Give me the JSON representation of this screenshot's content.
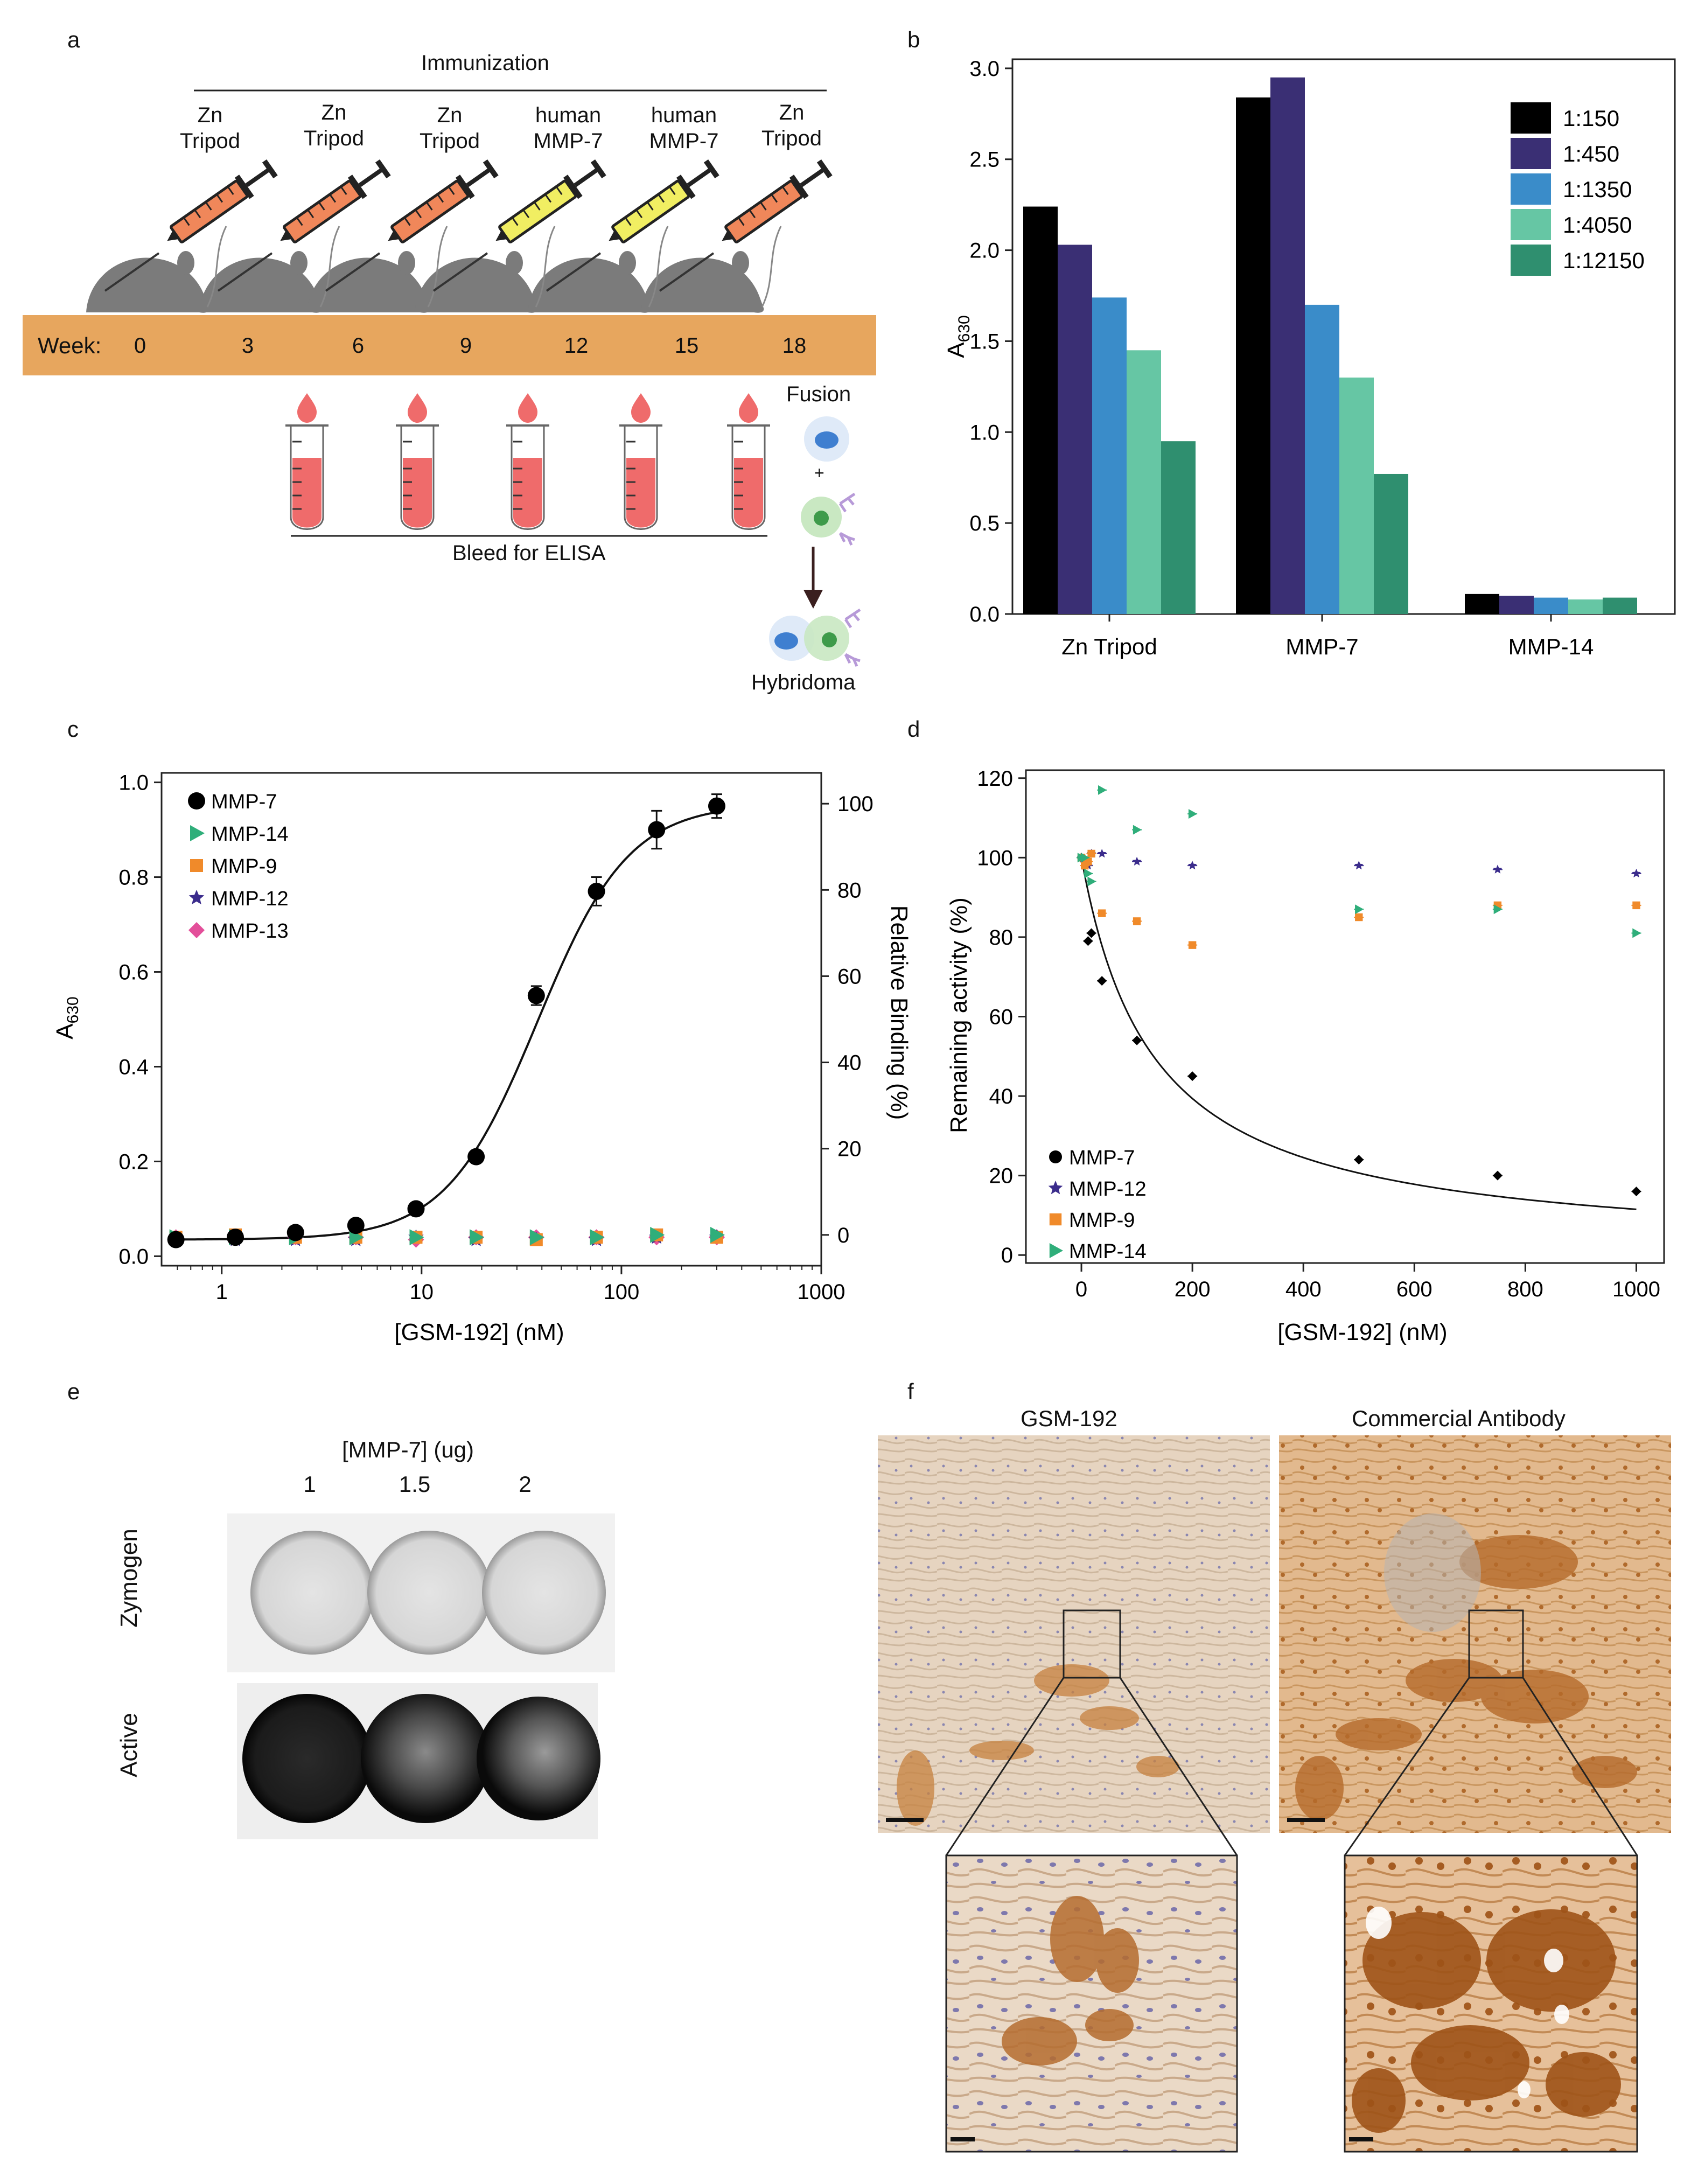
{
  "panel_labels": {
    "a": "a",
    "b": "b",
    "c": "c",
    "d": "d",
    "e": "e",
    "f": "f"
  },
  "colors": {
    "orange_band": "#e7a65e",
    "syringe_orange": "#f0875a",
    "syringe_yellow": "#f1ee62",
    "mouse_gray": "#7b7b7b",
    "blood": "#ef6b6b",
    "myeloma_cell": "#8ab6e8",
    "b_cell": "#a7d8a2",
    "antibody": "#b79ad8"
  },
  "panel_a": {
    "immunization_label": "Immunization",
    "week_label": "Week:",
    "antigens": [
      {
        "line1": "Zn",
        "line2": "Tripod",
        "color": "orange"
      },
      {
        "line1": "Zn",
        "line2": "Tripod",
        "color": "orange"
      },
      {
        "line1": "Zn",
        "line2": "Tripod",
        "color": "orange"
      },
      {
        "line1": "human",
        "line2": "MMP-7",
        "color": "yellow"
      },
      {
        "line1": "human",
        "line2": "MMP-7",
        "color": "yellow"
      },
      {
        "line1": "Zn",
        "line2": "Tripod",
        "color": "orange"
      }
    ],
    "weeks": [
      "0",
      "3",
      "6",
      "9",
      "12",
      "15",
      "18"
    ],
    "bleed_label": "Bleed for ELISA",
    "fusion_label": "Fusion",
    "plus": "+",
    "hybridoma_label": "Hybridoma"
  },
  "chart_data": [
    {
      "id": "b",
      "type": "bar",
      "ylabel_main": "A",
      "ylabel_sub": "630",
      "categories": [
        "Zn Tripod",
        "MMP-7",
        "MMP-14"
      ],
      "ylim": [
        0,
        3.0
      ],
      "yticks": [
        "0.0",
        "0.5",
        "1.0",
        "1.5",
        "2.0",
        "2.5",
        "3.0"
      ],
      "legend_position": "top-right",
      "series": [
        {
          "name": "1:150",
          "color": "#000000",
          "values": [
            2.24,
            2.84,
            0.11
          ]
        },
        {
          "name": "1:450",
          "color": "#3a2f74",
          "values": [
            2.03,
            2.95,
            0.1
          ]
        },
        {
          "name": "1:1350",
          "color": "#3a8cc9",
          "values": [
            1.74,
            1.7,
            0.09
          ]
        },
        {
          "name": "1:4050",
          "color": "#66c6a4",
          "values": [
            1.45,
            1.3,
            0.08
          ]
        },
        {
          "name": "1:12150",
          "color": "#2f8f6f",
          "values": [
            0.95,
            0.77,
            0.09
          ]
        }
      ]
    },
    {
      "id": "c",
      "type": "scatter",
      "x_scale": "log",
      "xlabel": "[GSM-192] (nM)",
      "ylabel_main": "A",
      "ylabel_sub": "630",
      "ylabel_right": "Relative Binding (%)",
      "xlim": [
        0.5,
        1000
      ],
      "ylim": [
        0,
        1.0
      ],
      "xticks": [
        {
          "v": 1,
          "t": "1"
        },
        {
          "v": 10,
          "t": "10"
        },
        {
          "v": 100,
          "t": "100"
        },
        {
          "v": 1000,
          "t": "1000"
        }
      ],
      "yticks": [
        "0.0",
        "0.2",
        "0.4",
        "0.6",
        "0.8",
        "1.0"
      ],
      "right_ticks": [
        "0",
        "20",
        "40",
        "60",
        "80",
        "100"
      ],
      "legend_position": "top-left",
      "x": [
        0.59,
        1.17,
        2.34,
        4.69,
        9.38,
        18.75,
        37.5,
        75,
        150,
        300
      ],
      "series": [
        {
          "name": "MMP-7",
          "color": "#000000",
          "marker": "circle",
          "values": [
            0.035,
            0.04,
            0.05,
            0.065,
            0.1,
            0.21,
            0.55,
            0.77,
            0.9,
            0.95
          ],
          "errors": [
            0,
            0,
            0,
            0,
            0,
            0,
            0.02,
            0.03,
            0.04,
            0.025
          ]
        },
        {
          "name": "MMP-14",
          "color": "#2fae7a",
          "marker": "triangle",
          "values": [
            0.04,
            0.04,
            0.04,
            0.04,
            0.04,
            0.04,
            0.04,
            0.04,
            0.045,
            0.045
          ]
        },
        {
          "name": "MMP-9",
          "color": "#f08a2a",
          "marker": "square",
          "values": [
            0.04,
            0.045,
            0.04,
            0.04,
            0.04,
            0.04,
            0.035,
            0.04,
            0.045,
            0.04
          ]
        },
        {
          "name": "MMP-12",
          "color": "#3b2c8c",
          "marker": "star",
          "values": [
            0.035,
            0.035,
            0.035,
            0.035,
            0.04,
            0.035,
            0.035,
            0.035,
            0.04,
            0.04
          ]
        },
        {
          "name": "MMP-13",
          "color": "#e34f9a",
          "marker": "diamond",
          "values": [
            0.04,
            0.04,
            0.04,
            0.04,
            0.035,
            0.04,
            0.04,
            0.04,
            0.04,
            0.04
          ]
        }
      ],
      "fit": {
        "series": "MMP-7",
        "bottom": 0.035,
        "top": 0.955,
        "ec50": 38,
        "hill": 1.9
      }
    },
    {
      "id": "d",
      "type": "scatter",
      "xlabel": "[GSM-192] (nM)",
      "ylabel": "Remaining activity (%)",
      "xlim": [
        -100,
        1050
      ],
      "ylim": [
        0,
        120
      ],
      "xticks": [
        "0",
        "200",
        "400",
        "600",
        "800",
        "1000"
      ],
      "yticks": [
        "0",
        "20",
        "40",
        "60",
        "80",
        "100",
        "120"
      ],
      "legend_position": "bottom-left",
      "series": [
        {
          "name": "MMP-7",
          "color": "#000000",
          "marker": "diamond",
          "x": [
            0,
            6,
            12,
            18,
            37,
            100,
            200,
            500,
            750,
            1000
          ],
          "values": [
            100,
            99,
            79,
            81,
            69,
            54,
            45,
            24,
            20,
            16
          ]
        },
        {
          "name": "MMP-12",
          "color": "#3b2c8c",
          "marker": "star",
          "x": [
            0,
            6,
            12,
            18,
            37,
            100,
            200,
            500,
            750,
            1000
          ],
          "values": [
            100,
            99,
            98,
            101,
            101,
            99,
            98,
            98,
            97,
            96
          ]
        },
        {
          "name": "MMP-9",
          "color": "#f08a2a",
          "marker": "square",
          "x": [
            0,
            6,
            12,
            18,
            37,
            100,
            200,
            500,
            750,
            1000
          ],
          "values": [
            100,
            98,
            99,
            101,
            86,
            84,
            78,
            85,
            88,
            88
          ]
        },
        {
          "name": "MMP-14",
          "color": "#2fae7a",
          "marker": "triangle",
          "x": [
            0,
            6,
            12,
            18,
            37,
            100,
            200,
            500,
            750,
            1000
          ],
          "values": [
            100,
            100,
            96,
            94,
            117,
            107,
            111,
            87,
            87,
            81
          ]
        }
      ],
      "fit": {
        "series": "MMP-7",
        "ic50": 130
      }
    }
  ],
  "panel_e": {
    "title": "[MMP-7] (ug)",
    "amounts": [
      "1",
      "1.5",
      "2"
    ],
    "row_zymogen": "Zymogen",
    "row_active": "Active"
  },
  "panel_f": {
    "left_title": "GSM-192",
    "right_title": "Commercial Antibody"
  }
}
